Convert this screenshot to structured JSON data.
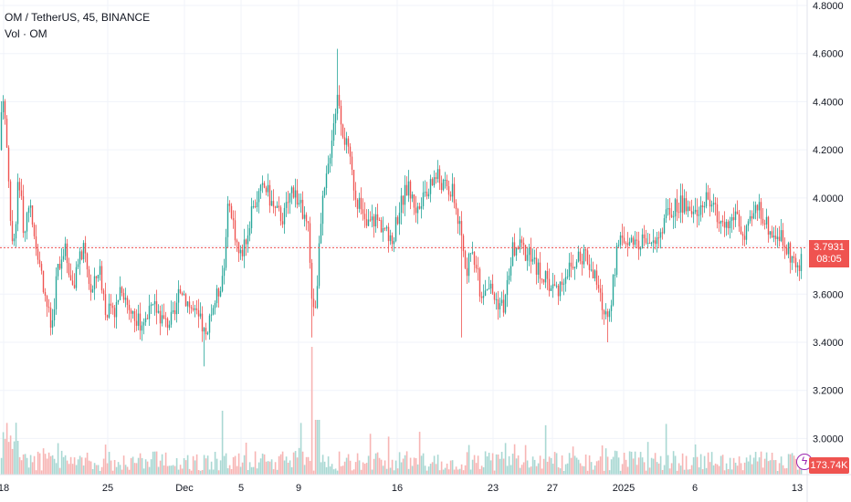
{
  "legend": {
    "symbol": "OM / TetherUS, 45, BINANCE",
    "volume": "Vol · OM"
  },
  "price_badge": {
    "price": "3.7931",
    "countdown": "08:05",
    "color": "#ef5350"
  },
  "volume_badge": {
    "value": "173.74K",
    "color": "#ef5350"
  },
  "icons": {
    "flash": "flash-icon"
  },
  "colors": {
    "up": "#26a69a",
    "down": "#ef5350",
    "grid": "#f0f3fa",
    "vol_up": "#a9d8d3",
    "vol_down": "#f7b5b4"
  },
  "chart_data": {
    "type": "candlestick",
    "title": "OM / TetherUS, 45, BINANCE",
    "ylim": [
      2.85,
      4.85
    ],
    "y_ticks": [
      "4.8000",
      "4.6000",
      "4.4000",
      "4.2000",
      "4.0000",
      "3.8000",
      "3.6000",
      "3.4000",
      "3.2000",
      "3.0000"
    ],
    "x_ticks": [
      "18",
      "25",
      "Dec",
      "5",
      "9",
      "16",
      "23",
      "27",
      "2025",
      "6",
      "13"
    ],
    "last_price": 3.7931,
    "volume_series_name": "Vol · OM",
    "last_volume": "173.74K",
    "price_path": [
      [
        0,
        4.2
      ],
      [
        2,
        4.45
      ],
      [
        6,
        4.3
      ],
      [
        10,
        4.0
      ],
      [
        14,
        3.75
      ],
      [
        20,
        4.1
      ],
      [
        26,
        3.85
      ],
      [
        32,
        3.95
      ],
      [
        40,
        3.8
      ],
      [
        50,
        3.58
      ],
      [
        56,
        3.45
      ],
      [
        62,
        3.7
      ],
      [
        70,
        3.8
      ],
      [
        80,
        3.62
      ],
      [
        90,
        3.8
      ],
      [
        100,
        3.6
      ],
      [
        108,
        3.72
      ],
      [
        115,
        3.55
      ],
      [
        124,
        3.5
      ],
      [
        132,
        3.65
      ],
      [
        140,
        3.55
      ],
      [
        150,
        3.48
      ],
      [
        160,
        3.5
      ],
      [
        170,
        3.55
      ],
      [
        180,
        3.48
      ],
      [
        190,
        3.5
      ],
      [
        198,
        3.63
      ],
      [
        204,
        3.58
      ],
      [
        212,
        3.52
      ],
      [
        220,
        3.48
      ],
      [
        226,
        3.4
      ],
      [
        232,
        3.55
      ],
      [
        238,
        3.6
      ],
      [
        245,
        3.72
      ],
      [
        248,
        3.95
      ],
      [
        255,
        3.9
      ],
      [
        262,
        3.75
      ],
      [
        270,
        3.85
      ],
      [
        280,
        4.0
      ],
      [
        290,
        4.05
      ],
      [
        300,
        3.95
      ],
      [
        310,
        3.92
      ],
      [
        320,
        4.05
      ],
      [
        330,
        3.95
      ],
      [
        338,
        3.85
      ],
      [
        342,
        3.5
      ],
      [
        346,
        3.6
      ],
      [
        352,
        3.95
      ],
      [
        358,
        4.1
      ],
      [
        364,
        4.3
      ],
      [
        370,
        4.45
      ],
      [
        374,
        4.3
      ],
      [
        380,
        4.2
      ],
      [
        390,
        4.0
      ],
      [
        400,
        3.88
      ],
      [
        410,
        3.92
      ],
      [
        420,
        3.88
      ],
      [
        428,
        3.8
      ],
      [
        436,
        3.95
      ],
      [
        446,
        4.05
      ],
      [
        456,
        3.95
      ],
      [
        466,
        4.0
      ],
      [
        476,
        4.1
      ],
      [
        486,
        4.05
      ],
      [
        496,
        4.02
      ],
      [
        504,
        3.85
      ],
      [
        510,
        3.7
      ],
      [
        518,
        3.78
      ],
      [
        526,
        3.6
      ],
      [
        534,
        3.65
      ],
      [
        542,
        3.58
      ],
      [
        552,
        3.55
      ],
      [
        560,
        3.78
      ],
      [
        570,
        3.8
      ],
      [
        580,
        3.75
      ],
      [
        590,
        3.7
      ],
      [
        600,
        3.65
      ],
      [
        610,
        3.62
      ],
      [
        620,
        3.7
      ],
      [
        630,
        3.72
      ],
      [
        640,
        3.78
      ],
      [
        648,
        3.7
      ],
      [
        655,
        3.62
      ],
      [
        662,
        3.5
      ],
      [
        668,
        3.55
      ],
      [
        676,
        3.8
      ],
      [
        686,
        3.85
      ],
      [
        696,
        3.78
      ],
      [
        706,
        3.85
      ],
      [
        716,
        3.8
      ],
      [
        726,
        3.9
      ],
      [
        736,
        3.95
      ],
      [
        746,
        3.98
      ],
      [
        756,
        3.92
      ],
      [
        766,
        3.97
      ],
      [
        776,
        4.0
      ],
      [
        786,
        3.92
      ],
      [
        796,
        3.88
      ],
      [
        806,
        3.95
      ],
      [
        814,
        3.82
      ],
      [
        822,
        3.9
      ],
      [
        830,
        3.98
      ],
      [
        838,
        3.9
      ],
      [
        846,
        3.85
      ],
      [
        854,
        3.85
      ],
      [
        862,
        3.78
      ],
      [
        868,
        3.75
      ],
      [
        874,
        3.68
      ],
      [
        878,
        3.79
      ]
    ]
  }
}
